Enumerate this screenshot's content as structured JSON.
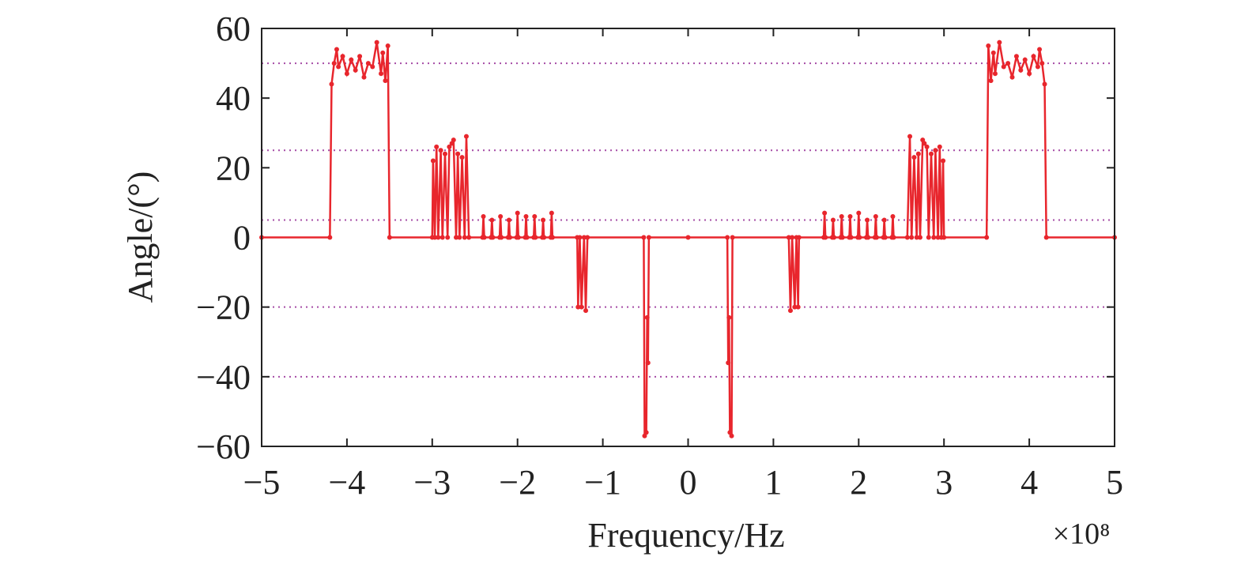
{
  "chart_data": {
    "type": "line",
    "xlabel": "Frequency/Hz",
    "ylabel": "Angle/(°)",
    "x_multiplier": "×10⁸",
    "xlim": [
      -5,
      5
    ],
    "ylim": [
      -60,
      60
    ],
    "xticks": [
      {
        "value": -5,
        "label": "−5"
      },
      {
        "value": -4,
        "label": "−4"
      },
      {
        "value": -3,
        "label": "−3"
      },
      {
        "value": -2,
        "label": "−2"
      },
      {
        "value": -1,
        "label": "−1"
      },
      0,
      1,
      2,
      3,
      4,
      5
    ],
    "yticks": [
      {
        "value": -60,
        "label": "−60"
      },
      {
        "value": -40,
        "label": "−40"
      },
      {
        "value": -20,
        "label": "−20"
      },
      0,
      20,
      40,
      60
    ],
    "hlines": [
      50,
      25,
      5,
      -20,
      -40
    ],
    "hline_color": "#a64ca6",
    "x": [
      -5,
      -4.2,
      -4.18,
      -4.15,
      -4.12,
      -4.1,
      -4.05,
      -4,
      -3.95,
      -3.9,
      -3.85,
      -3.8,
      -3.75,
      -3.7,
      -3.65,
      -3.6,
      -3.58,
      -3.55,
      -3.52,
      -3.5,
      -3,
      -2.99,
      -2.97,
      -2.95,
      -2.93,
      -2.9,
      -2.88,
      -2.85,
      -2.82,
      -2.8,
      -2.77,
      -2.75,
      -2.72,
      -2.7,
      -2.68,
      -2.65,
      -2.62,
      -2.6,
      -2.57,
      -2.41,
      -2.4,
      -2.39,
      -2.31,
      -2.3,
      -2.29,
      -2.21,
      -2.2,
      -2.19,
      -2.11,
      -2.1,
      -2.09,
      -2.01,
      -2,
      -1.99,
      -1.91,
      -1.9,
      -1.89,
      -1.81,
      -1.8,
      -1.79,
      -1.71,
      -1.7,
      -1.69,
      -1.61,
      -1.6,
      -1.59,
      -1.3,
      -1.29,
      -1.27,
      -1.25,
      -1.22,
      -1.2,
      -1.18,
      -0.52,
      -0.51,
      -0.49,
      -0.48,
      -0.47,
      -0.46,
      0,
      0.46,
      0.47,
      0.48,
      0.49,
      0.51,
      0.52,
      1.18,
      1.2,
      1.22,
      1.25,
      1.27,
      1.29,
      1.3,
      1.59,
      1.6,
      1.61,
      1.69,
      1.7,
      1.71,
      1.79,
      1.8,
      1.81,
      1.89,
      1.9,
      1.91,
      1.99,
      2,
      2.01,
      2.09,
      2.1,
      2.11,
      2.19,
      2.2,
      2.21,
      2.29,
      2.3,
      2.31,
      2.39,
      2.4,
      2.41,
      2.57,
      2.6,
      2.62,
      2.65,
      2.68,
      2.7,
      2.72,
      2.75,
      2.77,
      2.8,
      2.82,
      2.85,
      2.88,
      2.9,
      2.93,
      2.95,
      2.97,
      2.99,
      3,
      3.5,
      3.52,
      3.55,
      3.58,
      3.6,
      3.65,
      3.7,
      3.75,
      3.8,
      3.85,
      3.9,
      3.95,
      4,
      4.05,
      4.1,
      4.12,
      4.15,
      4.18,
      4.2,
      5
    ],
    "series": [
      {
        "color": "#e8262d",
        "values": [
          0,
          0,
          44,
          50,
          54,
          49,
          52,
          47,
          51,
          48,
          52,
          46,
          50,
          49,
          56,
          47,
          53,
          45,
          55,
          0,
          0,
          22,
          0,
          26,
          0,
          25,
          0,
          24,
          0,
          26,
          27,
          28,
          0,
          24,
          0,
          23,
          0,
          29,
          0,
          0,
          6,
          0,
          0,
          5,
          0,
          0,
          6,
          0,
          0,
          5,
          0,
          0,
          7,
          0,
          0,
          6,
          0,
          0,
          6,
          0,
          0,
          5,
          0,
          0,
          7,
          0,
          0,
          -20,
          0,
          -20,
          0,
          -21,
          0,
          0,
          -57,
          -56,
          -23,
          -36,
          0,
          0,
          0,
          -36,
          -23,
          -56,
          -57,
          0,
          0,
          -21,
          0,
          -20,
          0,
          -20,
          0,
          0,
          7,
          0,
          0,
          5,
          0,
          0,
          6,
          0,
          0,
          6,
          0,
          0,
          7,
          0,
          0,
          5,
          0,
          0,
          6,
          0,
          0,
          5,
          0,
          0,
          6,
          0,
          0,
          29,
          0,
          23,
          0,
          24,
          0,
          28,
          27,
          26,
          0,
          24,
          0,
          25,
          0,
          26,
          0,
          22,
          0,
          0,
          55,
          45,
          53,
          47,
          56,
          49,
          50,
          46,
          52,
          48,
          51,
          47,
          52,
          49,
          54,
          50,
          44,
          0,
          0
        ]
      }
    ]
  }
}
